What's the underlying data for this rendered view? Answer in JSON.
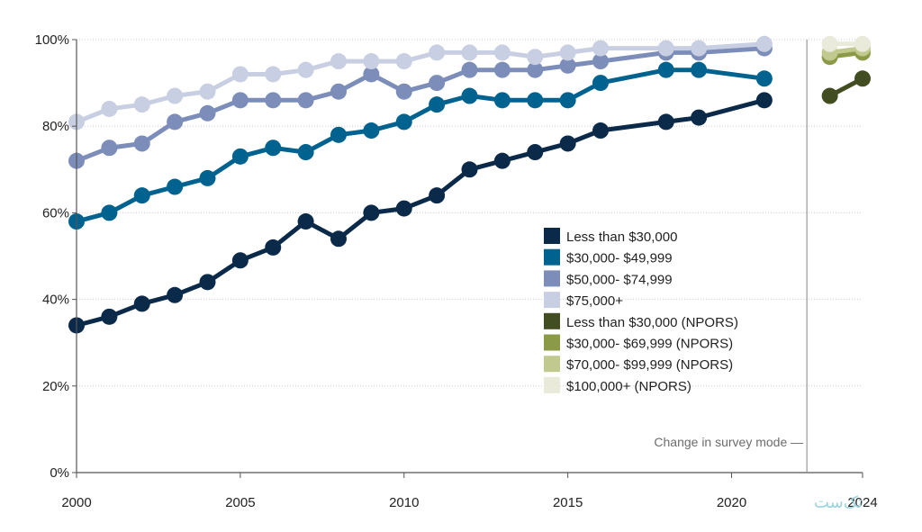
{
  "chart_data": {
    "type": "line",
    "title": "",
    "xlabel": "",
    "ylabel": "",
    "xlim": [
      2000,
      2024
    ],
    "ylim": [
      0,
      100
    ],
    "x_ticks": [
      {
        "value": 2000,
        "label": "2000"
      },
      {
        "value": 2005,
        "label": "2005"
      },
      {
        "value": 2010,
        "label": "2010"
      },
      {
        "value": 2015,
        "label": "2015"
      },
      {
        "value": 2020,
        "label": "2020"
      },
      {
        "value": 2024,
        "label": "2024"
      }
    ],
    "y_ticks": [
      {
        "value": 0,
        "label": "0%"
      },
      {
        "value": 20,
        "label": "20%"
      },
      {
        "value": 40,
        "label": "40%"
      },
      {
        "value": 60,
        "label": "60%"
      },
      {
        "value": 80,
        "label": "80%"
      },
      {
        "value": 100,
        "label": "100%"
      }
    ],
    "annotation": {
      "text": "Change in survey mode",
      "x": 2022.3
    },
    "legend_position": "center-right",
    "series": [
      {
        "name": "Less than $30,000",
        "color": "#0b2a4a",
        "x": [
          2000,
          2001,
          2002,
          2003,
          2004,
          2005,
          2006,
          2007,
          2008,
          2009,
          2010,
          2011,
          2012,
          2013,
          2014,
          2015,
          2016,
          2018,
          2019,
          2021
        ],
        "values": [
          34,
          36,
          39,
          41,
          44,
          49,
          52,
          58,
          54,
          60,
          61,
          64,
          70,
          72,
          74,
          76,
          79,
          81,
          82,
          86
        ]
      },
      {
        "name": "$30,000- $49,999",
        "color": "#00628f",
        "x": [
          2000,
          2001,
          2002,
          2003,
          2004,
          2005,
          2006,
          2007,
          2008,
          2009,
          2010,
          2011,
          2012,
          2013,
          2014,
          2015,
          2016,
          2018,
          2019,
          2021
        ],
        "values": [
          58,
          60,
          64,
          66,
          68,
          73,
          75,
          74,
          78,
          79,
          81,
          85,
          87,
          86,
          86,
          86,
          90,
          93,
          93,
          91
        ]
      },
      {
        "name": "$50,000- $74,999",
        "color": "#7b8db8",
        "x": [
          2000,
          2001,
          2002,
          2003,
          2004,
          2005,
          2006,
          2007,
          2008,
          2009,
          2010,
          2011,
          2012,
          2013,
          2014,
          2015,
          2016,
          2018,
          2019,
          2021
        ],
        "values": [
          72,
          75,
          76,
          81,
          83,
          86,
          86,
          86,
          88,
          92,
          88,
          90,
          93,
          93,
          93,
          94,
          95,
          97,
          97,
          98
        ]
      },
      {
        "name": "$75,000+",
        "color": "#c9cfe2",
        "x": [
          2000,
          2001,
          2002,
          2003,
          2004,
          2005,
          2006,
          2007,
          2008,
          2009,
          2010,
          2011,
          2012,
          2013,
          2014,
          2015,
          2016,
          2018,
          2019,
          2021
        ],
        "values": [
          81,
          84,
          85,
          87,
          88,
          92,
          92,
          93,
          95,
          95,
          95,
          97,
          97,
          97,
          96,
          97,
          98,
          98,
          98,
          99
        ]
      },
      {
        "name": "Less than $30,000 (NPORS)",
        "color": "#424d22",
        "x": [
          2023,
          2024
        ],
        "values": [
          87,
          91
        ]
      },
      {
        "name": "$30,000- $69,999 (NPORS)",
        "color": "#8b9a46",
        "x": [
          2023,
          2024
        ],
        "values": [
          96,
          97
        ]
      },
      {
        "name": "$70,000- $99,999 (NPORS)",
        "color": "#c1c98f",
        "x": [
          2023,
          2024
        ],
        "values": [
          97,
          98
        ]
      },
      {
        "name": "$100,000+ (NPORS)",
        "color": "#e9ead9",
        "x": [
          2023,
          2024
        ],
        "values": [
          99,
          99
        ]
      }
    ]
  },
  "watermark": {
    "text": "تک‌ست"
  }
}
